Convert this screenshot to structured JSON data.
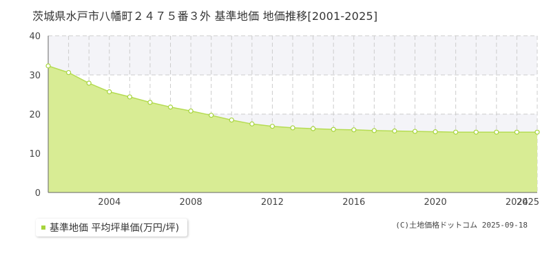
{
  "title": "茨城県水戸市八幡町２４７５番３外 基準地価 地価推移[2001-2025]",
  "legend": {
    "label": "基準地価 平均坪単価(万円/坪)"
  },
  "copyright": "(C)土地価格ドットコム 2025-09-18",
  "colors": {
    "fill": "#d8ec94",
    "line": "#b5dc52",
    "marker_fill": "#ffffff",
    "marker_stroke": "#a6d43c",
    "band": "#f4f4f8",
    "grid": "#cccccc"
  },
  "chart_data": {
    "type": "area",
    "x": [
      2001,
      2002,
      2003,
      2004,
      2005,
      2006,
      2007,
      2008,
      2009,
      2010,
      2011,
      2012,
      2013,
      2014,
      2015,
      2016,
      2017,
      2018,
      2019,
      2020,
      2021,
      2022,
      2023,
      2024,
      2025
    ],
    "series": [
      {
        "name": "基準地価 平均坪単価(万円/坪)",
        "values": [
          32.3,
          30.6,
          27.9,
          25.7,
          24.4,
          23.0,
          21.8,
          20.8,
          19.7,
          18.5,
          17.5,
          16.9,
          16.5,
          16.3,
          16.1,
          16.0,
          15.8,
          15.7,
          15.6,
          15.5,
          15.4,
          15.4,
          15.4,
          15.4,
          15.4
        ]
      }
    ],
    "xticks": [
      2004,
      2008,
      2012,
      2016,
      2020,
      2024,
      2025
    ],
    "yticks": [
      0,
      10,
      20,
      30,
      40
    ],
    "xlim": [
      2001,
      2025
    ],
    "ylim": [
      0,
      40
    ],
    "grid": true,
    "legend_position": "bottom-left"
  }
}
